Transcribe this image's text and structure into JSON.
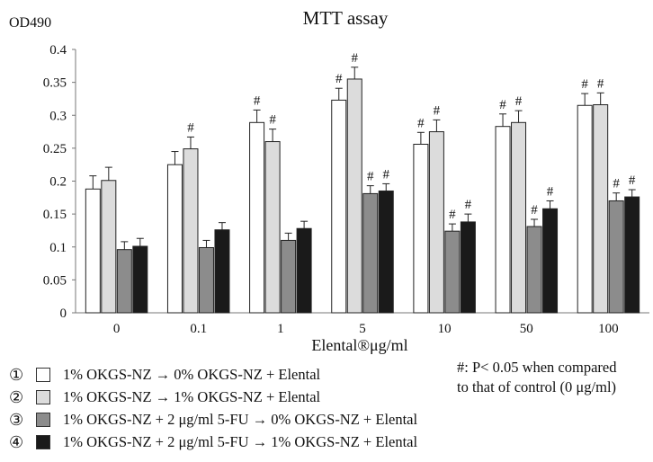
{
  "chart_data": {
    "type": "bar",
    "title": "MTT assay",
    "ylabel": "OD490",
    "xlabel": "Elental®μg/ml",
    "ylim": [
      0,
      0.4
    ],
    "yticks": [
      "0",
      "0.05",
      "0.1",
      "0.15",
      "0.2",
      "0.25",
      "0.3",
      "0.35",
      "0.4"
    ],
    "categories": [
      "0",
      "0.1",
      "1",
      "5",
      "10",
      "50",
      "100"
    ],
    "series": [
      {
        "name": "1% OKGS-NZ → 0% OKGS-NZ + Elental",
        "color": "#ffffff",
        "values": [
          0.188,
          0.225,
          0.289,
          0.323,
          0.256,
          0.283,
          0.315
        ],
        "errors": [
          0.02,
          0.02,
          0.019,
          0.018,
          0.018,
          0.019,
          0.018
        ],
        "marks": [
          "",
          "",
          "#",
          "#",
          "#",
          "#",
          "#"
        ]
      },
      {
        "name": "1% OKGS-NZ → 1% OKGS-NZ + Elental",
        "color": "#dcdcdc",
        "values": [
          0.201,
          0.249,
          0.26,
          0.355,
          0.275,
          0.289,
          0.316
        ],
        "errors": [
          0.02,
          0.018,
          0.019,
          0.018,
          0.018,
          0.018,
          0.018
        ],
        "marks": [
          "",
          "#",
          "#",
          "#",
          "#",
          "#",
          "#"
        ]
      },
      {
        "name": "1% OKGS-NZ + 2 μg/ml 5-FU → 0% OKGS-NZ + Elental",
        "color": "#8c8c8c",
        "values": [
          0.096,
          0.099,
          0.11,
          0.181,
          0.124,
          0.131,
          0.17
        ],
        "errors": [
          0.012,
          0.011,
          0.011,
          0.012,
          0.011,
          0.011,
          0.012
        ],
        "marks": [
          "",
          "",
          "",
          "#",
          "#",
          "#",
          "#"
        ]
      },
      {
        "name": "1% OKGS-NZ + 2 μg/ml 5-FU → 1% OKGS-NZ + Elental",
        "color": "#1a1a1a",
        "values": [
          0.101,
          0.126,
          0.128,
          0.185,
          0.138,
          0.158,
          0.176
        ],
        "errors": [
          0.012,
          0.011,
          0.011,
          0.011,
          0.012,
          0.012,
          0.011
        ],
        "marks": [
          "",
          "",
          "",
          "#",
          "#",
          "#",
          "#"
        ]
      }
    ],
    "grid": false,
    "legend_position": "bottom"
  },
  "legend": {
    "items": [
      {
        "num": "①",
        "text": "1% OKGS-NZ    → 0% OKGS-NZ  +  Elental",
        "color": "#ffffff"
      },
      {
        "num": "②",
        "text": "1% OKGS-NZ    → 1% OKGS-NZ  +  Elental",
        "color": "#dcdcdc"
      },
      {
        "num": "③",
        "text": "1% OKGS-NZ + 2 μg/ml 5-FU   →  0% OKGS-NZ +  Elental",
        "color": "#8c8c8c"
      },
      {
        "num": "④",
        "text": "1% OKGS-NZ + 2 μg/ml 5-FU   →  1% OKGS-NZ +  Elental",
        "color": "#1a1a1a"
      }
    ]
  },
  "note": {
    "line1": "#: P< 0.05  when compared",
    "line2": "to that of control (0 μg/ml)"
  }
}
